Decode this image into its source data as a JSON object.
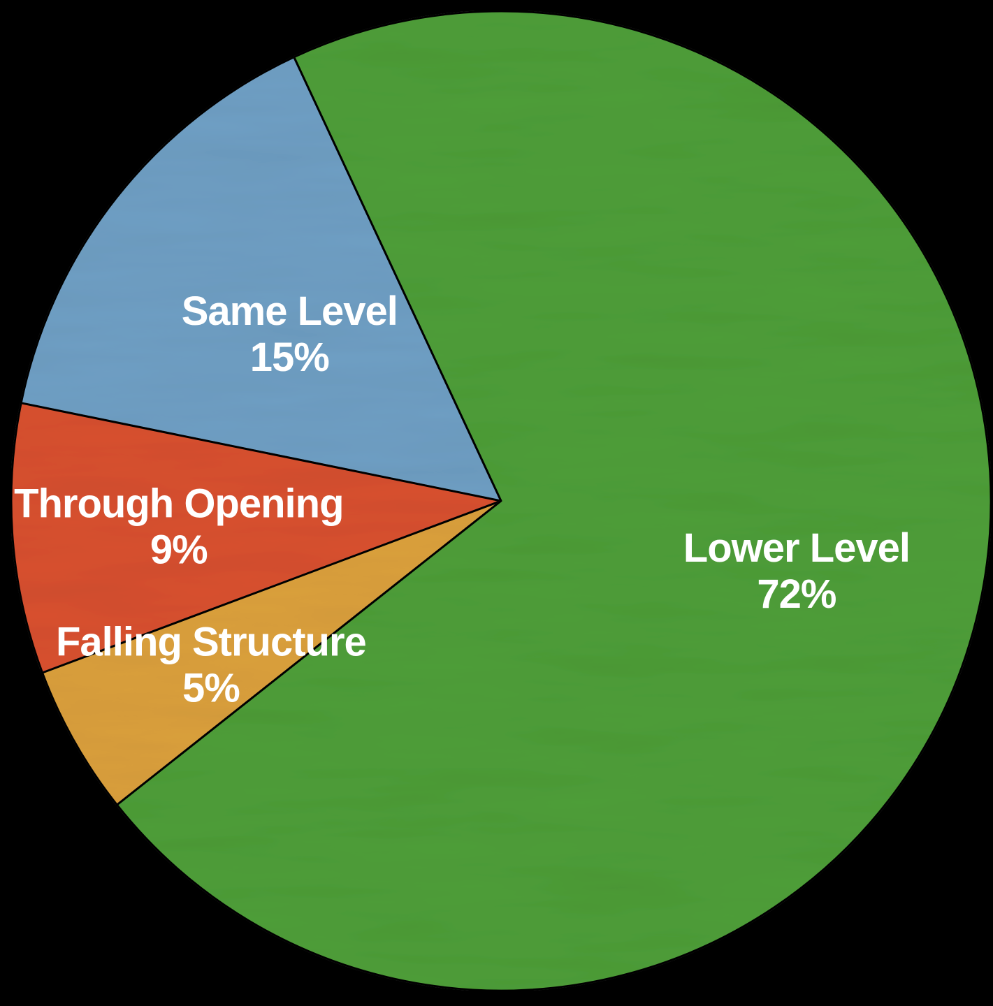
{
  "chart_data": {
    "type": "pie",
    "title": "",
    "start_angle_deg": -25,
    "direction": "counterclockwise",
    "slices": [
      {
        "label": "Same Level",
        "value": 15,
        "value_text": "15%",
        "color": "#6f9fc4"
      },
      {
        "label": "Through Opening",
        "value": 9,
        "value_text": "9%",
        "color": "#d8502f"
      },
      {
        "label": "Falling Structure",
        "value": 5,
        "value_text": "5%",
        "color": "#dba03c"
      },
      {
        "label": "Lower Level",
        "value": 72,
        "value_text": "72%",
        "color": "#4e9e38"
      }
    ]
  }
}
